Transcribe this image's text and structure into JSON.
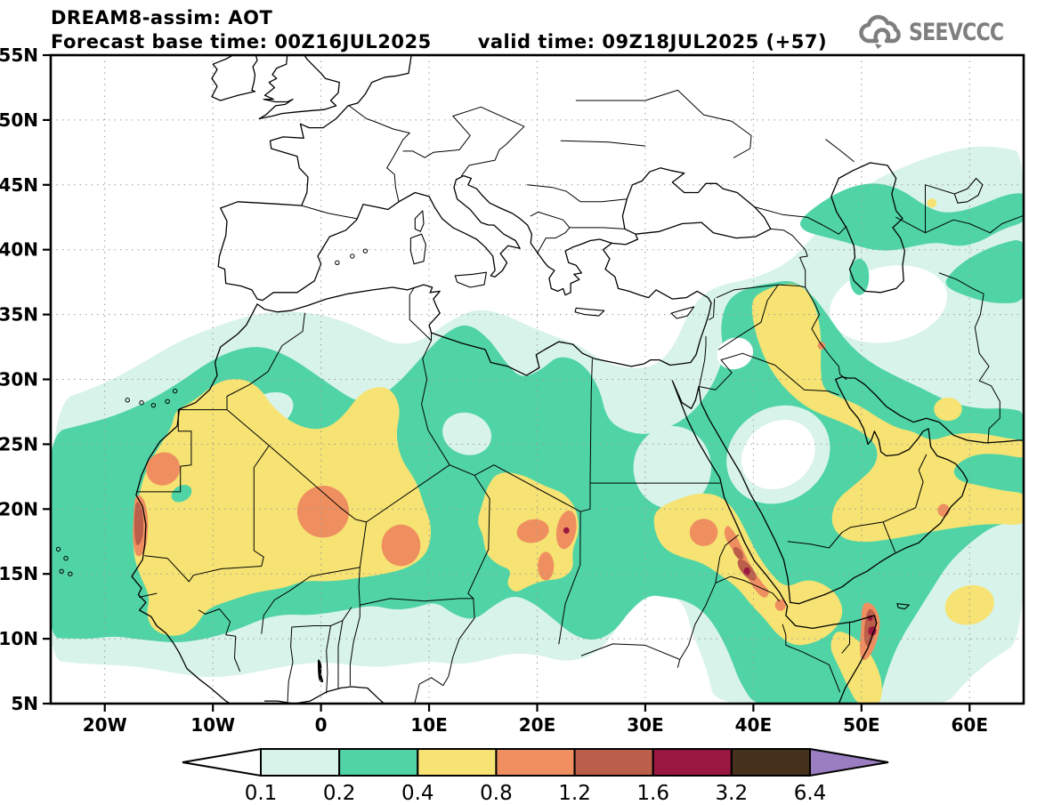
{
  "header": {
    "title": "DREAM8-assim: AOT",
    "forecast_base_time": "Forecast base time: 00Z16JUL2025",
    "valid_time": "valid time: 09Z18JUL2025 (+57)"
  },
  "logo": {
    "text": "SEEVCCC"
  },
  "axes": {
    "lat_labels": [
      "55N",
      "50N",
      "45N",
      "40N",
      "35N",
      "30N",
      "25N",
      "20N",
      "15N",
      "10N",
      "5N"
    ],
    "lat_values": [
      55,
      50,
      45,
      40,
      35,
      30,
      25,
      20,
      15,
      10,
      5
    ],
    "lon_labels": [
      "20W",
      "10W",
      "0",
      "10E",
      "20E",
      "30E",
      "40E",
      "50E",
      "60E"
    ],
    "lon_values": [
      -20,
      -10,
      0,
      10,
      20,
      30,
      40,
      50,
      60
    ]
  },
  "colorbar": {
    "labels": [
      "0.1",
      "0.2",
      "0.4",
      "0.8",
      "1.2",
      "1.6",
      "3.2",
      "6.4"
    ],
    "cell_colors": [
      "#d8f3ea",
      "#50d4a6",
      "#f6e373",
      "#ef8f60",
      "#bb5e4a",
      "#991740",
      "#46311d"
    ],
    "under_color": "#ffffff",
    "over_color": "#9b7ec2"
  },
  "palette": {
    "aot_01": "#d8f3ea",
    "aot_02": "#50d4a6",
    "aot_04": "#f6e373",
    "aot_08": "#ef8f60",
    "aot_12": "#bb5e4a",
    "aot_16": "#991740",
    "aot_32": "#46311d",
    "aot_64": "#9b7ec2",
    "land_line": "#000000",
    "grid": "#9a9a9a",
    "logo_gray": "#7e7e7e"
  }
}
